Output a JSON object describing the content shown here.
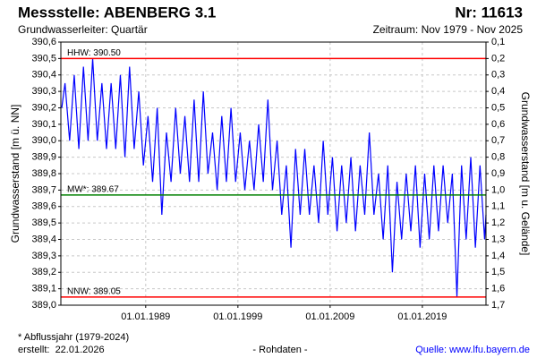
{
  "chart_data": {
    "type": "line",
    "title": "Messstelle: ABENBERG 3.1",
    "number": "Nr: 11613",
    "subtitle": "Grundwasserleiter: Quartär",
    "period": "Zeitraum: Nov 1979 - Nov 2025",
    "ylabel": "Grundwasserstand [m ü. NN]",
    "y2label": "Grundwasserstand [m u. Gelände]",
    "footnote": "* Abflussjahr (1979-2024)",
    "created": "erstellt:  22.01.2026",
    "data_note": "- Rohdaten -",
    "source": "Quelle: www.lfu.bayern.de",
    "grid": true,
    "xlim": [
      1979.8,
      2025.9
    ],
    "xticks": [
      {
        "value": 1989,
        "label": "01.01.1989"
      },
      {
        "value": 1999,
        "label": "01.01.1999"
      },
      {
        "value": 2009,
        "label": "01.01.2009"
      },
      {
        "value": 2019,
        "label": "01.01.2019"
      }
    ],
    "ylim": [
      389.0,
      390.6
    ],
    "yticks": [
      {
        "value": 389.0,
        "label": "389,0"
      },
      {
        "value": 389.1,
        "label": "389,1"
      },
      {
        "value": 389.2,
        "label": "389,2"
      },
      {
        "value": 389.3,
        "label": "389,3"
      },
      {
        "value": 389.4,
        "label": "389,4"
      },
      {
        "value": 389.5,
        "label": "389,5"
      },
      {
        "value": 389.6,
        "label": "389,6"
      },
      {
        "value": 389.7,
        "label": "389,7"
      },
      {
        "value": 389.8,
        "label": "389,8"
      },
      {
        "value": 389.9,
        "label": "389,9"
      },
      {
        "value": 390.0,
        "label": "390,0"
      },
      {
        "value": 390.1,
        "label": "390,1"
      },
      {
        "value": 390.2,
        "label": "390,2"
      },
      {
        "value": 390.3,
        "label": "390,3"
      },
      {
        "value": 390.4,
        "label": "390,4"
      },
      {
        "value": 390.5,
        "label": "390,5"
      },
      {
        "value": 390.6,
        "label": "390,6"
      }
    ],
    "y2lim": [
      1.7,
      0.1
    ],
    "y2ticks": [
      {
        "value": 0.1,
        "label": "0,1"
      },
      {
        "value": 0.2,
        "label": "0,2"
      },
      {
        "value": 0.3,
        "label": "0,3"
      },
      {
        "value": 0.4,
        "label": "0,4"
      },
      {
        "value": 0.5,
        "label": "0,5"
      },
      {
        "value": 0.6,
        "label": "0,6"
      },
      {
        "value": 0.7,
        "label": "0,7"
      },
      {
        "value": 0.8,
        "label": "0,8"
      },
      {
        "value": 0.9,
        "label": "0,9"
      },
      {
        "value": 1.0,
        "label": "1,0"
      },
      {
        "value": 1.1,
        "label": "1,1"
      },
      {
        "value": 1.2,
        "label": "1,2"
      },
      {
        "value": 1.3,
        "label": "1,3"
      },
      {
        "value": 1.4,
        "label": "1,4"
      },
      {
        "value": 1.5,
        "label": "1,5"
      },
      {
        "value": 1.6,
        "label": "1,6"
      },
      {
        "value": 1.7,
        "label": "1,7"
      }
    ],
    "reference_lines": [
      {
        "label": "HHW: 390.50",
        "value": 390.5,
        "color": "#ff0000"
      },
      {
        "label": "MW*: 389.67",
        "value": 389.67,
        "color": "#008000"
      },
      {
        "label": "NNW: 389.05",
        "value": 389.05,
        "color": "#ff0000"
      }
    ],
    "series": [
      {
        "name": "Grundwasserstand",
        "color": "#0000ff",
        "x": [
          1979.9,
          1980.25,
          1980.75,
          1981.25,
          1981.75,
          1982.25,
          1982.75,
          1983.25,
          1983.75,
          1984.25,
          1984.75,
          1985.25,
          1985.75,
          1986.25,
          1986.75,
          1987.25,
          1987.75,
          1988.25,
          1988.75,
          1989.25,
          1989.75,
          1990.25,
          1990.75,
          1991.25,
          1991.75,
          1992.25,
          1992.75,
          1993.25,
          1993.75,
          1994.25,
          1994.75,
          1995.25,
          1995.75,
          1996.25,
          1996.75,
          1997.25,
          1997.75,
          1998.25,
          1998.75,
          1999.25,
          1999.75,
          2000.25,
          2000.75,
          2001.25,
          2001.75,
          2002.25,
          2002.75,
          2003.25,
          2003.75,
          2004.25,
          2004.75,
          2005.25,
          2005.75,
          2006.25,
          2006.75,
          2007.25,
          2007.75,
          2008.25,
          2008.75,
          2009.25,
          2009.75,
          2010.25,
          2010.75,
          2011.25,
          2011.75,
          2012.25,
          2012.75,
          2013.25,
          2013.75,
          2014.25,
          2014.75,
          2015.25,
          2015.75,
          2016.25,
          2016.75,
          2017.25,
          2017.75,
          2018.25,
          2018.75,
          2019.25,
          2019.75,
          2020.25,
          2020.75,
          2021.25,
          2021.75,
          2022.25,
          2022.75,
          2023.25,
          2023.75,
          2024.25,
          2024.75,
          2025.25,
          2025.75,
          2025.9
        ],
        "values": [
          390.2,
          390.35,
          390.0,
          390.4,
          389.95,
          390.45,
          390.0,
          390.5,
          390.0,
          390.35,
          389.95,
          390.35,
          389.95,
          390.4,
          389.9,
          390.45,
          389.95,
          390.3,
          389.85,
          390.15,
          389.75,
          390.2,
          389.55,
          390.05,
          389.75,
          390.2,
          389.8,
          390.15,
          389.75,
          390.25,
          389.75,
          390.3,
          389.8,
          390.05,
          389.7,
          390.15,
          389.75,
          390.2,
          389.75,
          390.05,
          389.7,
          390.0,
          389.7,
          390.1,
          389.75,
          390.25,
          389.7,
          390.0,
          389.55,
          389.85,
          389.35,
          389.95,
          389.55,
          389.95,
          389.55,
          389.85,
          389.5,
          390.0,
          389.55,
          389.9,
          389.45,
          389.85,
          389.5,
          389.9,
          389.45,
          389.85,
          389.55,
          390.05,
          389.55,
          389.8,
          389.4,
          389.85,
          389.2,
          389.75,
          389.4,
          389.8,
          389.45,
          389.85,
          389.35,
          389.8,
          389.4,
          389.85,
          389.45,
          389.85,
          389.5,
          389.8,
          389.05,
          389.85,
          389.4,
          389.9,
          389.35,
          389.85,
          389.4,
          389.55
        ]
      }
    ]
  }
}
